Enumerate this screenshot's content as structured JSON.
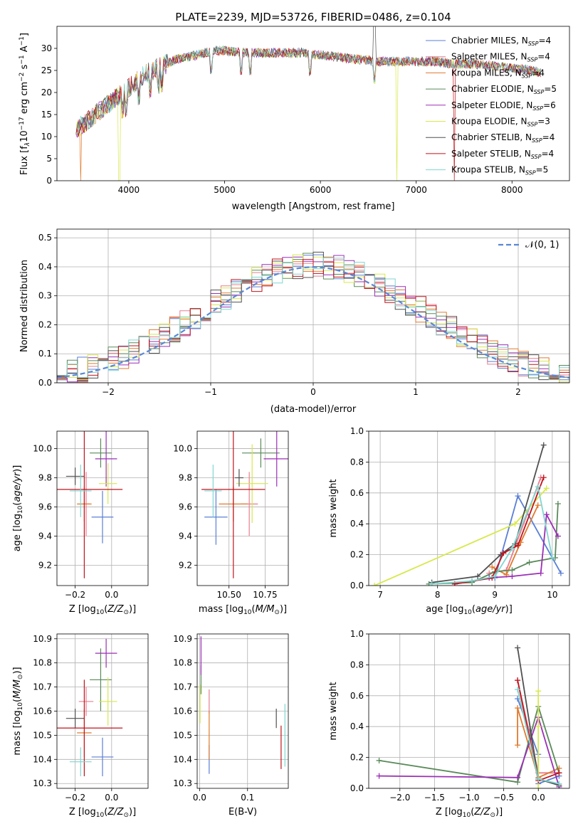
{
  "figure": {
    "title": "PLATE=2239, MJD=53726, FIBERID=0486, z=0.104"
  },
  "colors": {
    "chabrier_miles": "#5a7fd6",
    "salpeter_miles": "#e87d8f",
    "kroupa_miles": "#e07a2e",
    "chabrier_elodie": "#5a8a5a",
    "salpeter_elodie": "#9b2fb5",
    "kroupa_elodie": "#d7e84a",
    "chabrier_stelib": "#505050",
    "salpeter_stelib": "#c0141c",
    "kroupa_stelib": "#7fd6d0",
    "normal_curve": "#5a87d6",
    "grid": "#b0b0b0"
  },
  "chart_data": [
    {
      "id": "spectrum",
      "type": "line",
      "title": "PLATE=2239, MJD=53726, FIBERID=0486, z=0.104",
      "xlabel": "wavelength [Angstrom, rest frame]",
      "ylabel": "Flux [f$_\\lambda$10$^{-17}$ erg cm$^{-2}$ s$^{-1}$ A$^{-1}$]",
      "ylabel_parts": [
        "Flux [f",
        "λ",
        "10",
        "−17",
        " erg cm",
        "−2",
        " s",
        "−1",
        " A",
        "−1",
        "]"
      ],
      "xlim": [
        3250,
        8600
      ],
      "ylim": [
        0,
        35
      ],
      "xticks": [
        "4000",
        "5000",
        "6000",
        "7000",
        "8000"
      ],
      "yticks": [
        "0",
        "5",
        "10",
        "15",
        "20",
        "25",
        "30"
      ],
      "grid": false,
      "legend_position": "upper right",
      "continuum": {
        "x": [
          3450,
          3500,
          3600,
          3700,
          3800,
          3900,
          4000,
          4100,
          4200,
          4300,
          4400,
          4500,
          4600,
          4700,
          4800,
          4900,
          5000,
          5200,
          5400,
          5600,
          5800,
          6000,
          6200,
          6400,
          6600,
          6800,
          7000,
          7200,
          7400,
          7600,
          7800,
          8000,
          8200,
          8300
        ],
        "y": [
          11.5,
          12.5,
          14,
          16,
          17.5,
          19.5,
          21,
          23,
          24.5,
          25.5,
          26.5,
          27.5,
          28,
          28.5,
          29,
          29.5,
          29.5,
          29,
          29,
          29,
          29,
          28.5,
          28,
          27.5,
          27,
          27,
          27,
          27,
          26.5,
          26.5,
          26,
          25.5,
          25,
          24.5
        ]
      },
      "series": [
        {
          "name": "Chabrier MILES, N_SSP=4",
          "label_base": "Chabrier MILES, N",
          "label_sub": "SSP",
          "label_tail": "=4",
          "color_key": "chabrier_miles"
        },
        {
          "name": "Salpeter MILES, N_SSP=4",
          "label_base": "Salpeter MILES, N",
          "label_sub": "SSP",
          "label_tail": "=4",
          "color_key": "salpeter_miles"
        },
        {
          "name": "Kroupa MILES, N_SSP=4",
          "label_base": "Kroupa MILES, N",
          "label_sub": "SSP",
          "label_tail": "=4",
          "color_key": "kroupa_miles"
        },
        {
          "name": "Chabrier ELODIE, N_SSP=5",
          "label_base": "Chabrier ELODIE, N",
          "label_sub": "SSP",
          "label_tail": "=5",
          "color_key": "chabrier_elodie"
        },
        {
          "name": "Salpeter ELODIE, N_SSP=6",
          "label_base": "Salpeter ELODIE, N",
          "label_sub": "SSP",
          "label_tail": "=6",
          "color_key": "salpeter_elodie"
        },
        {
          "name": "Kroupa ELODIE, N_SSP=3",
          "label_base": "Kroupa ELODIE, N",
          "label_sub": "SSP",
          "label_tail": "=3",
          "color_key": "kroupa_elodie"
        },
        {
          "name": "Chabrier STELIB, N_SSP=4",
          "label_base": "Chabrier STELIB, N",
          "label_sub": "SSP",
          "label_tail": "=4",
          "color_key": "chabrier_stelib"
        },
        {
          "name": "Salpeter STELIB, N_SSP=4",
          "label_base": "Salpeter STELIB, N",
          "label_sub": "SSP",
          "label_tail": "=4",
          "color_key": "salpeter_stelib"
        },
        {
          "name": "Kroupa STELIB, N_SSP=5",
          "label_base": "Kroupa STELIB, N",
          "label_sub": "SSP",
          "label_tail": "=5",
          "color_key": "kroupa_stelib"
        }
      ]
    },
    {
      "id": "residuals",
      "type": "line",
      "xlabel": "(data-model)/error",
      "ylabel": "Normed distribution",
      "xlim": [
        -2.5,
        2.5
      ],
      "ylim": [
        0,
        0.53
      ],
      "xticks": [
        "−2",
        "−1",
        "0",
        "1",
        "2"
      ],
      "yticks": [
        "0.0",
        "0.1",
        "0.2",
        "0.3",
        "0.4",
        "0.5"
      ],
      "grid": true,
      "legend_position": "upper right",
      "legend_label": "𝒩(0, 1)",
      "bin_width": 0.1,
      "normal": {
        "mean": 0,
        "sigma": 1
      }
    },
    {
      "id": "age_vs_Z",
      "type": "scatter",
      "xlabel": "Z [log$_{10}$(Z/Z$_\\odot$)]",
      "ylabel": "age  [log$_{10}$(age/yr)]",
      "xlim": [
        -0.3,
        0.2
      ],
      "ylim": [
        9.06,
        10.12
      ],
      "xticks": [
        "−0.2",
        "0.0"
      ],
      "yticks": [
        "9.2",
        "9.4",
        "9.6",
        "9.8",
        "10.0"
      ],
      "grid": true,
      "points": [
        {
          "series": "chabrier_miles",
          "x": -0.05,
          "xerr": 0.06,
          "y": 9.53,
          "yerr": 0.18
        },
        {
          "series": "salpeter_miles",
          "x": -0.14,
          "xerr": 0.02,
          "y": 9.62,
          "yerr": 0.22
        },
        {
          "series": "kroupa_miles",
          "x": -0.15,
          "xerr": 0.04,
          "y": 9.62,
          "yerr": 0.12
        },
        {
          "series": "chabrier_elodie",
          "x": -0.06,
          "xerr": 0.06,
          "y": 9.97,
          "yerr": 0.1
        },
        {
          "series": "salpeter_elodie",
          "x": -0.03,
          "xerr": 0.06,
          "y": 9.93,
          "yerr": 0.19
        },
        {
          "series": "kroupa_elodie",
          "x": -0.02,
          "xerr": 0.05,
          "y": 9.76,
          "yerr": 0.14
        },
        {
          "series": "chabrier_stelib",
          "x": -0.2,
          "xerr": 0.05,
          "y": 9.81,
          "yerr": 0.06
        },
        {
          "series": "salpeter_stelib",
          "x": -0.15,
          "xerr": 0.21,
          "y": 9.72,
          "yerr": 0.61
        },
        {
          "series": "kroupa_stelib",
          "x": -0.17,
          "xerr": 0.06,
          "y": 9.71,
          "yerr": 0.18
        }
      ]
    },
    {
      "id": "age_vs_mass",
      "type": "scatter",
      "xlabel": "mass [log$_{10}$(M/M$_\\odot$)]",
      "xlim": [
        10.28,
        10.91
      ],
      "ylim": [
        9.06,
        10.12
      ],
      "xticks": [
        "10.50",
        "10.75"
      ],
      "yticks": [
        "9.2",
        "9.4",
        "9.6",
        "9.8",
        "10.0"
      ],
      "grid": true,
      "points": [
        {
          "series": "chabrier_miles",
          "x": 10.41,
          "xerr": 0.08,
          "y": 9.53,
          "yerr": 0.19
        },
        {
          "series": "salpeter_miles",
          "x": 10.64,
          "xerr": 0.06,
          "y": 9.62,
          "yerr": 0.22
        },
        {
          "series": "kroupa_miles",
          "x": 10.53,
          "xerr": 0.1,
          "y": 9.62,
          "yerr": 0.12
        },
        {
          "series": "chabrier_elodie",
          "x": 10.72,
          "xerr": 0.13,
          "y": 9.97,
          "yerr": 0.1
        },
        {
          "series": "salpeter_elodie",
          "x": 10.83,
          "xerr": 0.09,
          "y": 9.93,
          "yerr": 0.19
        },
        {
          "series": "kroupa_elodie",
          "x": 10.66,
          "xerr": 0.11,
          "y": 9.76,
          "yerr": 0.27
        },
        {
          "series": "chabrier_stelib",
          "x": 10.57,
          "xerr": 0.03,
          "y": 9.8,
          "yerr": 0.06
        },
        {
          "series": "salpeter_stelib",
          "x": 10.53,
          "xerr": 0.22,
          "y": 9.72,
          "yerr": 0.61
        },
        {
          "series": "kroupa_stelib",
          "x": 10.39,
          "xerr": 0.06,
          "y": 9.71,
          "yerr": 0.18
        }
      ]
    },
    {
      "id": "weight_vs_age",
      "type": "line",
      "xlabel": "age  [log$_{10}$(age/yr)]",
      "ylabel": "mass weight",
      "xlim": [
        6.8,
        10.3
      ],
      "ylim": [
        0,
        1
      ],
      "xticks": [
        "7",
        "8",
        "9",
        "10"
      ],
      "yticks": [
        "0.0",
        "0.2",
        "0.4",
        "0.6",
        "0.8",
        "1.0"
      ],
      "grid": true,
      "series": [
        {
          "series": "chabrier_miles",
          "x": [
            8.6,
            9.0,
            9.4,
            10.15
          ],
          "y": [
            0.03,
            0.05,
            0.58,
            0.08
          ]
        },
        {
          "series": "salpeter_miles",
          "x": [
            8.9,
            9.2,
            9.8
          ],
          "y": [
            0.08,
            0.1,
            0.7
          ]
        },
        {
          "series": "kroupa_miles",
          "x": [
            8.95,
            9.2,
            9.45,
            9.75
          ],
          "y": [
            0.12,
            0.07,
            0.28,
            0.52
          ]
        },
        {
          "series": "chabrier_elodie",
          "x": [
            7.85,
            8.6,
            9.0,
            9.3,
            9.6,
            10.05,
            10.1
          ],
          "y": [
            0.01,
            0.02,
            0.09,
            0.1,
            0.15,
            0.18,
            0.53
          ]
        },
        {
          "series": "salpeter_elodie",
          "x": [
            8.3,
            8.9,
            9.3,
            9.8,
            9.9,
            10.1
          ],
          "y": [
            0.01,
            0.05,
            0.06,
            0.08,
            0.46,
            0.32
          ]
        },
        {
          "series": "kroupa_elodie",
          "x": [
            6.9,
            9.35,
            9.9
          ],
          "y": [
            0.0,
            0.4,
            0.63
          ]
        },
        {
          "series": "chabrier_stelib",
          "x": [
            7.9,
            8.7,
            9.1,
            9.35,
            9.85
          ],
          "y": [
            0.02,
            0.06,
            0.2,
            0.27,
            0.91
          ]
        },
        {
          "series": "salpeter_stelib",
          "x": [
            8.3,
            8.95,
            9.15,
            9.4,
            9.85
          ],
          "y": [
            0.01,
            0.05,
            0.21,
            0.26,
            0.7
          ]
        },
        {
          "series": "kroupa_stelib",
          "x": [
            7.9,
            8.6,
            9.0,
            9.3,
            9.75,
            10.0
          ],
          "y": [
            0.01,
            0.03,
            0.06,
            0.24,
            0.64,
            0.18
          ]
        }
      ]
    },
    {
      "id": "mass_vs_Z",
      "type": "scatter",
      "xlabel": "Z [log$_{10}$(Z/Z$_\\odot$)]",
      "ylabel": "mass [log$_{10}$(M/M$_\\odot$)]",
      "xlim": [
        -0.3,
        0.2
      ],
      "ylim": [
        10.28,
        10.92
      ],
      "xticks": [
        "−0.2",
        "0.0"
      ],
      "yticks": [
        "10.3",
        "10.4",
        "10.5",
        "10.6",
        "10.7",
        "10.8",
        "10.9"
      ],
      "grid": true,
      "points": [
        {
          "series": "chabrier_miles",
          "x": -0.05,
          "xerr": 0.06,
          "y": 10.41,
          "yerr": 0.08
        },
        {
          "series": "salpeter_miles",
          "x": -0.14,
          "xerr": 0.04,
          "y": 10.64,
          "yerr": 0.06
        },
        {
          "series": "kroupa_miles",
          "x": -0.15,
          "xerr": 0.04,
          "y": 10.51,
          "yerr": 0.1
        },
        {
          "series": "chabrier_elodie",
          "x": -0.06,
          "xerr": 0.06,
          "y": 10.73,
          "yerr": 0.13
        },
        {
          "series": "salpeter_elodie",
          "x": -0.03,
          "xerr": 0.06,
          "y": 10.84,
          "yerr": 0.06
        },
        {
          "series": "kroupa_elodie",
          "x": -0.02,
          "xerr": 0.05,
          "y": 10.64,
          "yerr": 0.1
        },
        {
          "series": "chabrier_stelib",
          "x": -0.2,
          "xerr": 0.05,
          "y": 10.57,
          "yerr": 0.04
        },
        {
          "series": "salpeter_stelib",
          "x": -0.15,
          "xerr": 0.21,
          "y": 10.53,
          "yerr": 0.2
        },
        {
          "series": "kroupa_stelib",
          "x": -0.17,
          "xerr": 0.06,
          "y": 10.39,
          "yerr": 0.06
        }
      ]
    },
    {
      "id": "mass_vs_ebv",
      "type": "scatter",
      "xlabel": "E(B-V)",
      "xlim": [
        -0.005,
        0.185
      ],
      "ylim": [
        10.28,
        10.92
      ],
      "xticks": [
        "0.0",
        "0.1"
      ],
      "yticks": [
        "10.3",
        "10.4",
        "10.5",
        "10.6",
        "10.7",
        "10.8",
        "10.9"
      ],
      "grid": true,
      "points": [
        {
          "series": "chabrier_miles",
          "x": 0.02,
          "y": 10.4,
          "yerr": 0.06
        },
        {
          "series": "salpeter_miles",
          "x": 0.02,
          "y": 10.64,
          "yerr": 0.05
        },
        {
          "series": "kroupa_miles",
          "x": 0.02,
          "y": 10.5,
          "yerr": 0.1
        },
        {
          "series": "chabrier_elodie",
          "x": 0.003,
          "y": 10.73,
          "yerr": 0.06
        },
        {
          "series": "salpeter_elodie",
          "x": 0.003,
          "y": 10.83,
          "yerr": 0.08
        },
        {
          "series": "kroupa_elodie",
          "x": 0.001,
          "y": 10.63,
          "yerr": 0.08
        },
        {
          "series": "chabrier_stelib",
          "x": 0.16,
          "y": 10.57,
          "yerr": 0.04
        },
        {
          "series": "salpeter_stelib",
          "x": 0.17,
          "y": 10.45,
          "yerr": 0.09
        },
        {
          "series": "kroupa_stelib",
          "x": 0.178,
          "y": 10.5,
          "yerr": 0.13
        }
      ]
    },
    {
      "id": "weight_vs_Z",
      "type": "line",
      "xlabel": "Z [log$_{10}$(Z/Z$_\\odot$)]",
      "ylabel": "mass weight",
      "xlim": [
        -2.45,
        0.45
      ],
      "ylim": [
        0,
        1
      ],
      "xticks": [
        "−2.0",
        "−1.5",
        "−1.0",
        "−0.5",
        "0.0"
      ],
      "yticks": [
        "0.0",
        "0.2",
        "0.4",
        "0.6",
        "0.8",
        "1.0"
      ],
      "grid": true,
      "series": [
        {
          "series": "chabrier_miles",
          "x": [
            -0.3,
            0.0,
            0.0,
            0.3
          ],
          "y": [
            0.58,
            0.22,
            0.03,
            0.08
          ]
        },
        {
          "series": "salpeter_miles",
          "x": [
            -0.3,
            0.0,
            0.3
          ],
          "y": [
            0.7,
            0.1,
            0.1
          ]
        },
        {
          "series": "kroupa_miles",
          "x": [
            -0.3,
            -0.3,
            0.0,
            0.3
          ],
          "y": [
            0.28,
            0.52,
            0.07,
            0.13
          ]
        },
        {
          "series": "chabrier_elodie",
          "x": [
            -2.3,
            -0.3,
            0.0,
            0.3
          ],
          "y": [
            0.18,
            0.04,
            0.53,
            0.1
          ]
        },
        {
          "series": "salpeter_elodie",
          "x": [
            -2.3,
            -0.3,
            0.0,
            0.3
          ],
          "y": [
            0.08,
            0.07,
            0.46,
            0.01
          ]
        },
        {
          "series": "kroupa_elodie",
          "x": [
            0.0,
            0.0,
            0.0
          ],
          "y": [
            0.4,
            0.63,
            0.0
          ]
        },
        {
          "series": "chabrier_stelib",
          "x": [
            -0.3,
            0.0,
            0.3
          ],
          "y": [
            0.91,
            0.06,
            0.02
          ]
        },
        {
          "series": "salpeter_stelib",
          "x": [
            -0.3,
            0.0,
            0.3
          ],
          "y": [
            0.7,
            0.05,
            0.1
          ]
        },
        {
          "series": "kroupa_stelib",
          "x": [
            -0.3,
            0.0,
            0.3
          ],
          "y": [
            0.64,
            0.06,
            0.03
          ]
        }
      ]
    }
  ]
}
